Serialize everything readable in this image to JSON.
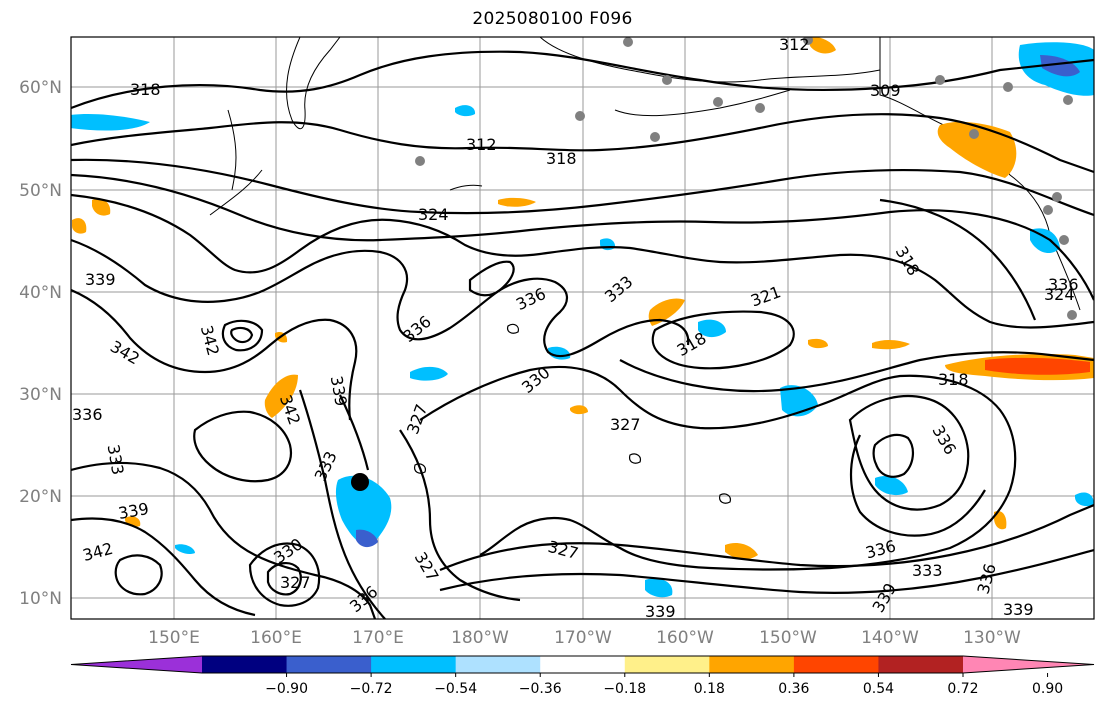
{
  "title": "2025080100 F096",
  "lat_labels": [
    "60°N",
    "50°N",
    "40°N",
    "30°N",
    "20°N",
    "10°N"
  ],
  "lon_labels": [
    "150°E",
    "160°E",
    "170°E",
    "180°W",
    "170°W",
    "160°W",
    "150°W",
    "140°W",
    "130°W"
  ],
  "colorbar": {
    "tick_labels": [
      "−0.90",
      "−0.72",
      "−0.54",
      "−0.36",
      "−0.18",
      "0.18",
      "0.36",
      "0.54",
      "0.72",
      "0.90"
    ],
    "colors": [
      "#9b30d9",
      "#000080",
      "#3a5fcd",
      "#00bfff",
      "#aee1ff",
      "#ffffff",
      "#fff08a",
      "#ffa500",
      "#ff4500",
      "#b22222",
      "#ff86b4"
    ]
  },
  "contour_labels": [
    "318",
    "312",
    "318",
    "324",
    "309",
    "312",
    "339",
    "342",
    "342",
    "336",
    "336",
    "339",
    "342",
    "333",
    "333",
    "336",
    "336",
    "333",
    "330",
    "327",
    "318",
    "321",
    "318",
    "318",
    "327",
    "336",
    "339",
    "330",
    "327",
    "336",
    "327",
    "327",
    "339",
    "336",
    "333",
    "336",
    "339",
    "339",
    "342",
    "324"
  ]
}
